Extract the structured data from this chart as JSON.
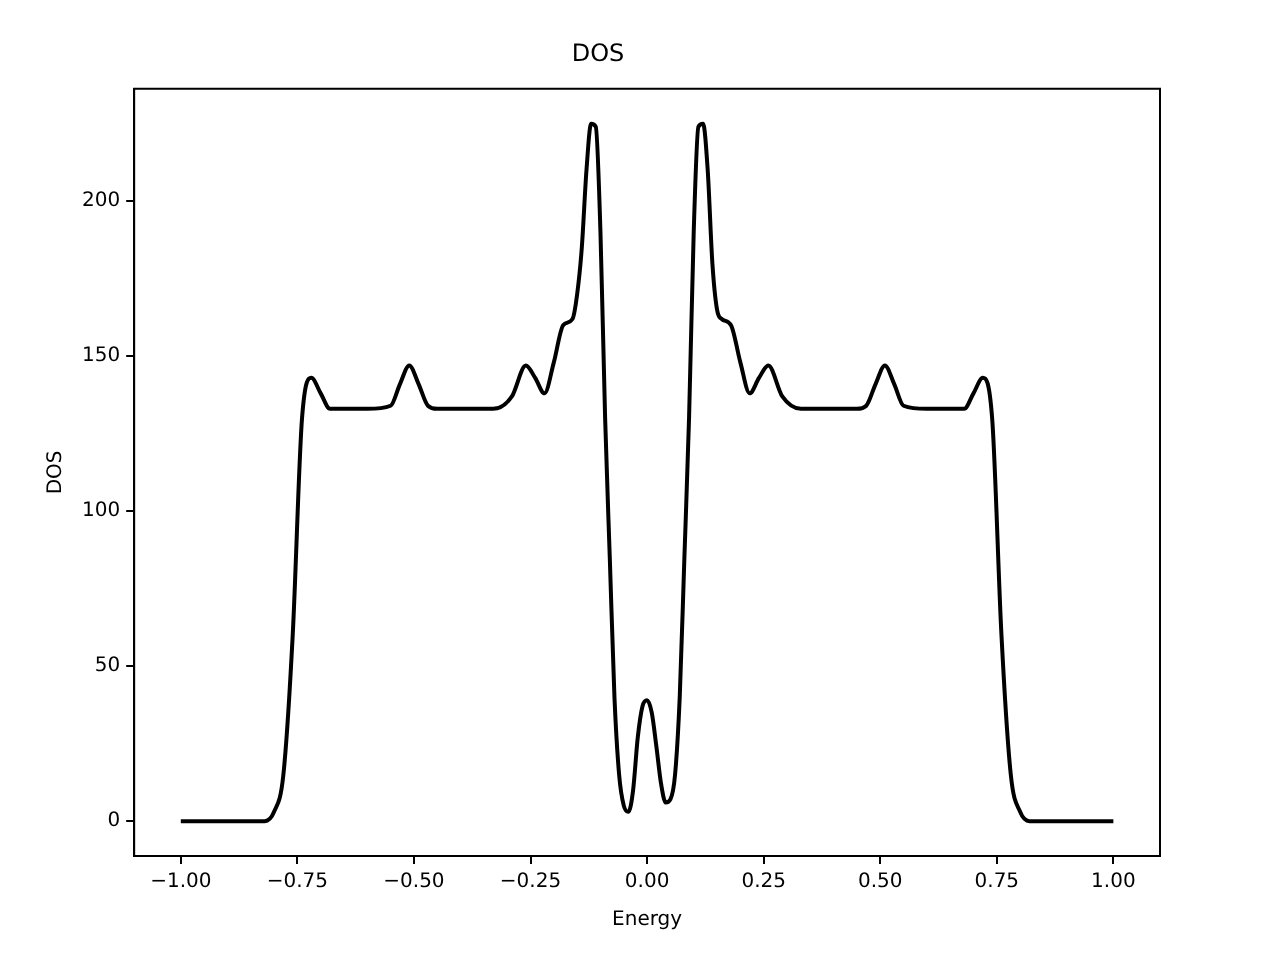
{
  "chart_data": {
    "type": "line",
    "title": "DOS",
    "xlabel": "Energy",
    "ylabel": "DOS",
    "xlim": [
      -1.1,
      1.1
    ],
    "ylim": [
      -11.25,
      236.25
    ],
    "xticks": [
      {
        "value": -1,
        "label": "−1.00"
      },
      {
        "value": -0.75,
        "label": "−0.75"
      },
      {
        "value": -0.5,
        "label": "−0.50"
      },
      {
        "value": -0.25,
        "label": "−0.25"
      },
      {
        "value": 0,
        "label": "0.00"
      },
      {
        "value": 0.25,
        "label": "0.25"
      },
      {
        "value": 0.5,
        "label": "0.50"
      },
      {
        "value": 0.75,
        "label": "0.75"
      },
      {
        "value": 1,
        "label": "1.00"
      }
    ],
    "yticks": [
      0,
      50,
      100,
      150,
      200
    ],
    "grid": false,
    "legend": false,
    "marker": "none",
    "line_style": "solid",
    "series": [
      {
        "color": "#000000",
        "x": [
          -1,
          -0.82,
          -0.8,
          -0.78,
          -0.76,
          -0.74,
          -0.72,
          -0.7,
          -0.68,
          -0.6,
          -0.55,
          -0.53,
          -0.51,
          -0.49,
          -0.47,
          -0.45,
          -0.33,
          -0.29,
          -0.26,
          -0.24,
          -0.22,
          -0.2,
          -0.18,
          -0.16,
          -0.15,
          -0.14,
          -0.13,
          -0.12,
          -0.11,
          -0.1,
          -0.09,
          -0.08,
          -0.07,
          -0.06,
          -0.05,
          -0.04,
          -0.03,
          -0.02,
          -0.01,
          0,
          0.01,
          0.02,
          0.03,
          0.04,
          0.05,
          0.06,
          0.07,
          0.08,
          0.09,
          0.1,
          0.11,
          0.12,
          0.13,
          0.14,
          0.15,
          0.16,
          0.18,
          0.2,
          0.22,
          0.24,
          0.26,
          0.29,
          0.33,
          0.45,
          0.47,
          0.49,
          0.51,
          0.53,
          0.55,
          0.6,
          0.68,
          0.7,
          0.72,
          0.74,
          0.76,
          0.78,
          0.8,
          0.82,
          1
        ],
        "values": [
          0,
          0,
          3,
          15,
          60,
          130,
          143,
          138,
          133,
          133,
          134,
          141,
          147,
          141,
          134,
          133,
          133,
          137,
          147,
          143,
          138,
          148,
          160,
          162,
          170,
          185,
          210,
          225,
          224,
          190,
          130,
          85,
          40,
          15,
          5,
          3,
          10,
          27,
          37,
          39,
          35,
          24,
          12,
          6,
          7,
          15,
          40,
          85,
          130,
          190,
          224,
          225,
          210,
          180,
          165,
          162,
          160,
          148,
          138,
          143,
          147,
          137,
          133,
          133,
          134,
          141,
          147,
          141,
          134,
          133,
          133,
          138,
          143,
          130,
          60,
          15,
          3,
          0,
          0
        ]
      }
    ]
  }
}
